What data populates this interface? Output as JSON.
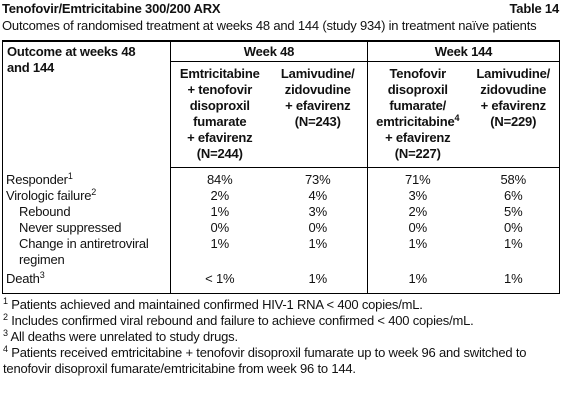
{
  "header": {
    "title": "Tenofovir/Emtricitabine 300/200 ARX",
    "table_label": "Table 14"
  },
  "caption": "Outcomes of randomised treatment at weeks 48 and 144 (study 934) in treatment naïve patients",
  "table": {
    "corner": [
      "Outcome at weeks 48",
      "and 144"
    ],
    "groups": [
      "Week 48",
      "Week 144"
    ],
    "columns": [
      {
        "lines": [
          "Emtricitabine",
          "+ tenofovir",
          "disoproxil",
          "fumarate",
          "+ efavirenz",
          "(N=244)"
        ]
      },
      {
        "lines": [
          "Lamivudine/",
          "zidovudine",
          "+ efavirenz",
          "(N=243)"
        ]
      },
      {
        "lines": [
          "Tenofovir",
          "disoproxil",
          "fumarate/",
          {
            "text": "emtricitabine",
            "sup": "4"
          },
          "+ efavirenz",
          "(N=227)"
        ]
      },
      {
        "lines": [
          "Lamivudine/",
          "zidovudine",
          "+ efavirenz",
          "(N=229)"
        ]
      }
    ],
    "rows": [
      {
        "label": "Responder",
        "sup": "1",
        "cells": [
          "84%",
          "73%",
          "71%",
          "58%"
        ]
      },
      {
        "label": "Virologic failure",
        "sup": "2",
        "cells": [
          "2%",
          "4%",
          "3%",
          "6%"
        ]
      },
      {
        "label": "Rebound",
        "cells": [
          "1%",
          "3%",
          "2%",
          "5%"
        ]
      },
      {
        "label": "Never suppressed",
        "cells": [
          "0%",
          "0%",
          "0%",
          "0%"
        ]
      },
      {
        "label": "Change in antiretroviral regimen",
        "cells": [
          "1%",
          "1%",
          "1%",
          "1%"
        ]
      },
      {
        "label": "Death",
        "sup": "3",
        "cells": [
          "< 1%",
          "1%",
          "1%",
          "1%"
        ]
      }
    ]
  },
  "footnotes": [
    {
      "mark": "1",
      "text": "Patients achieved and maintained confirmed HIV-1 RNA < 400 copies/mL."
    },
    {
      "mark": "2",
      "text": "Includes confirmed viral rebound and failure to achieve confirmed < 400 copies/mL."
    },
    {
      "mark": "3",
      "text": "All deaths were unrelated to study drugs."
    },
    {
      "mark": "4",
      "text": "Patients received emtricitabine + tenofovir disoproxil fumarate up to week 96 and switched to tenofovir disoproxil fumarate/emtricitabine from week 96 to 144."
    }
  ]
}
